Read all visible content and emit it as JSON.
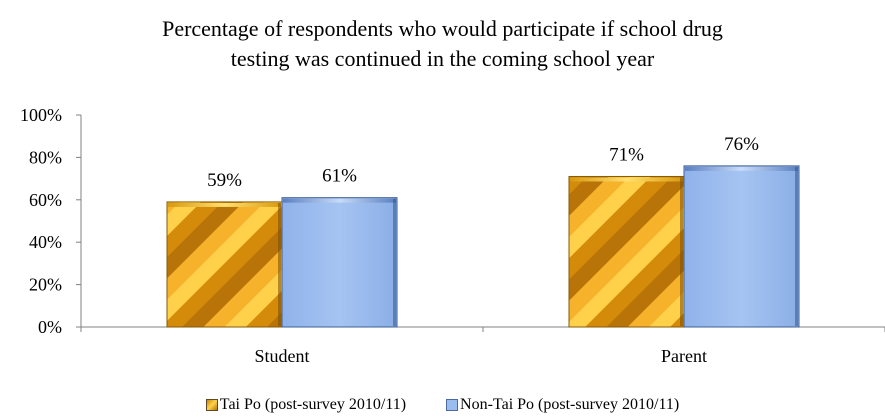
{
  "chart_data": {
    "type": "bar",
    "title": "Percentage of respondents who would participate if school drug testing was continued in the coming school year",
    "title_lines": [
      "Percentage of respondents who would participate if school drug",
      "testing was continued in the coming school year"
    ],
    "categories": [
      "Student",
      "Parent"
    ],
    "series": [
      {
        "name": "Tai Po (post-survey 2010/11)",
        "values": [
          59,
          71
        ],
        "labels": [
          "59%",
          "71%"
        ],
        "color": "#f2a81b"
      },
      {
        "name": "Non-Tai Po (post-survey 2010/11)",
        "values": [
          61,
          76
        ],
        "labels": [
          "61%",
          "76%"
        ],
        "color": "#9bbcee"
      }
    ],
    "ylim": [
      0,
      100
    ],
    "yticks": [
      "0%",
      "20%",
      "40%",
      "60%",
      "80%",
      "100%"
    ],
    "xlabel": "",
    "ylabel": "",
    "grid": false,
    "legend_position": "bottom"
  }
}
